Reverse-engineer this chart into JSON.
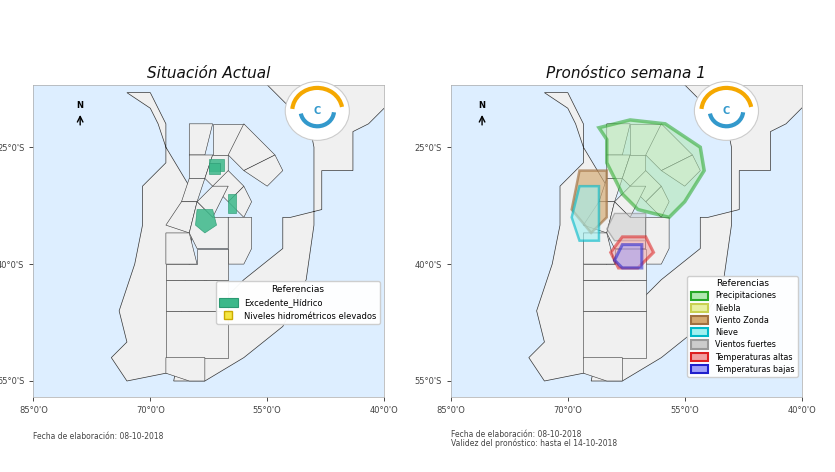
{
  "title_left": "Situación Actual",
  "title_right": "Pronóstico semana 1",
  "title_fontsize": 11,
  "bg_color": "#ffffff",
  "fecha_left": "Fecha de elaboración: 08-10-2018",
  "fecha_right_1": "Fecha de elaboración: 08-10-2018",
  "fecha_right_2": "Validez del pronóstico: hasta el 14-10-2018",
  "legend_left_title": "Referencias",
  "legend_right_title": "Referencias",
  "legend_left_items": [
    {
      "label": "Excedente_Hídrico",
      "color": "#3cb88a",
      "edge": "#2a9a72"
    },
    {
      "label": "Niveles hidrométricos elevados",
      "color": "#f5e642",
      "edge": "#ccaa00"
    }
  ],
  "legend_right_items": [
    {
      "label": "Precipitaciones",
      "color": "#b0e8b0",
      "edge": "#28a828"
    },
    {
      "label": "Niebla",
      "color": "#e8f0a0",
      "edge": "#c8d050"
    },
    {
      "label": "Viento Zonda",
      "color": "#d4a870",
      "edge": "#a07040"
    },
    {
      "label": "Nieve",
      "color": "#a0f0f0",
      "edge": "#00b8c8"
    },
    {
      "label": "Vientos fuertes",
      "color": "#cccccc",
      "edge": "#999999"
    },
    {
      "label": "Temperaturas altas",
      "color": "#f0a0a0",
      "edge": "#dd2020"
    },
    {
      "label": "Temperaturas bajas",
      "color": "#a0a0f8",
      "edge": "#2020cc"
    }
  ],
  "logo_color1": "#f5a800",
  "logo_color2": "#3399cc",
  "axis_color": "#444444",
  "tick_fontsize": 6,
  "lon_range": [
    -83,
    -40
  ],
  "lat_range": [
    -57,
    -17
  ],
  "xticks": [
    -85,
    -70,
    -55,
    -40
  ],
  "yticks": [
    -25,
    -40,
    -55
  ]
}
